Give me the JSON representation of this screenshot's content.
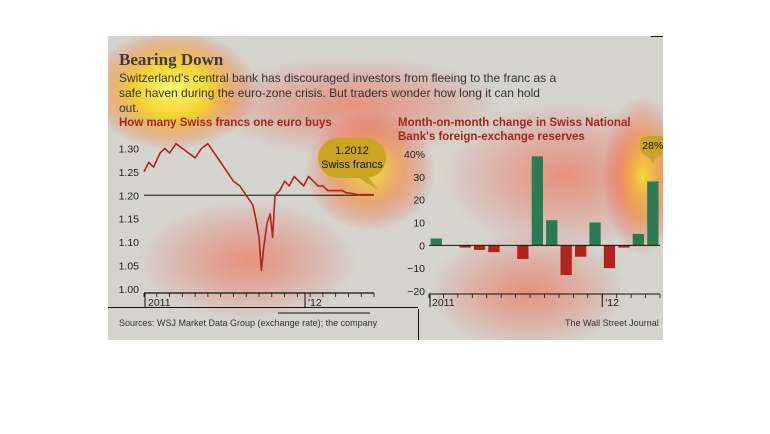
{
  "header": {
    "title": "Bearing Down",
    "subtitle": "Switzerland's central bank has discouraged investors from fleeing to the franc as a safe haven during the euro-zone crisis. But traders wonder how long it can hold out."
  },
  "footer": {
    "source": "Sources: WSJ Market Data Group (exchange rate); the company",
    "credit": "The Wall Street Journal"
  },
  "colors": {
    "panel": "#d4d4cc",
    "line": "#b1241b",
    "positive_bar": "#2b7a52",
    "negative_bar": "#b1241b",
    "callout": "#c9a521",
    "title": "#9c2a1e"
  },
  "chart_data": [
    {
      "type": "line",
      "title": "How many Swiss francs one euro buys",
      "x_tick_labels": [
        "2011",
        "'12"
      ],
      "y_tick_labels": [
        "1.30",
        "1.25",
        "1.20",
        "1.15",
        "1.10",
        "1.05",
        "1.00"
      ],
      "ylim": [
        1.0,
        1.32
      ],
      "reference_line": 1.2,
      "callout_value": "1.2012",
      "callout_unit": "Swiss francs",
      "grid": false,
      "legend": "none",
      "points": [
        [
          0,
          1.25
        ],
        [
          0.3,
          1.27
        ],
        [
          0.6,
          1.26
        ],
        [
          1.0,
          1.29
        ],
        [
          1.3,
          1.3
        ],
        [
          1.6,
          1.29
        ],
        [
          2.0,
          1.31
        ],
        [
          2.4,
          1.3
        ],
        [
          2.8,
          1.29
        ],
        [
          3.2,
          1.28
        ],
        [
          3.6,
          1.3
        ],
        [
          4.0,
          1.31
        ],
        [
          4.4,
          1.29
        ],
        [
          4.8,
          1.27
        ],
        [
          5.2,
          1.25
        ],
        [
          5.6,
          1.23
        ],
        [
          6.0,
          1.22
        ],
        [
          6.4,
          1.2
        ],
        [
          6.8,
          1.18
        ],
        [
          7.0,
          1.15
        ],
        [
          7.2,
          1.11
        ],
        [
          7.35,
          1.04
        ],
        [
          7.5,
          1.09
        ],
        [
          7.7,
          1.14
        ],
        [
          7.9,
          1.16
        ],
        [
          8.05,
          1.11
        ],
        [
          8.2,
          1.2
        ],
        [
          8.5,
          1.21
        ],
        [
          8.8,
          1.23
        ],
        [
          9.1,
          1.22
        ],
        [
          9.4,
          1.24
        ],
        [
          9.7,
          1.23
        ],
        [
          10.0,
          1.22
        ],
        [
          10.3,
          1.24
        ],
        [
          10.6,
          1.23
        ],
        [
          10.9,
          1.22
        ],
        [
          11.2,
          1.22
        ],
        [
          11.5,
          1.21
        ],
        [
          11.8,
          1.21
        ],
        [
          12.1,
          1.21
        ],
        [
          12.4,
          1.21
        ],
        [
          12.7,
          1.205
        ],
        [
          13.0,
          1.204
        ],
        [
          13.4,
          1.2012
        ],
        [
          13.8,
          1.2012
        ],
        [
          14.4,
          1.2012
        ]
      ]
    },
    {
      "type": "bar",
      "title": "Month-on-month change in Swiss National Bank's foreign-exchange reserves",
      "x_tick_labels": [
        "2011",
        "'12"
      ],
      "y_tick_labels": [
        "40%",
        "30",
        "20",
        "10",
        "0",
        "−10",
        "−20"
      ],
      "ylim": [
        -20,
        40
      ],
      "callout_value": "28%",
      "grid": false,
      "legend": "none",
      "values": [
        3,
        0,
        -1,
        -2,
        -3,
        0,
        -6,
        39,
        11,
        -13,
        -5,
        10,
        -10,
        -1,
        5,
        28
      ]
    }
  ]
}
